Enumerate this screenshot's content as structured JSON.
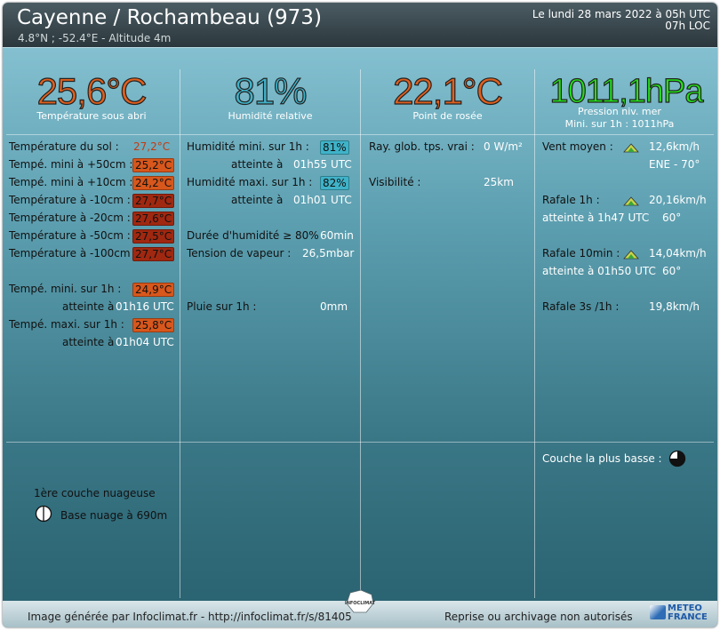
{
  "header": {
    "title": "Cayenne / Rochambeau (973)",
    "coords": "4.8°N ; -52.4°E - Altitude 4m",
    "date_line1": "Le lundi 28 mars 2022 à 05h UTC",
    "date_line2": "07h LOC"
  },
  "colors": {
    "temp": "#e0601e",
    "humidity": "#3fb2c8",
    "dew": "#e0601e",
    "pressure": "#22e01a"
  },
  "big": {
    "temperature": "25,6°C",
    "temperature_label": "Température sous abri",
    "humidity": "81%",
    "humidity_label": "Humidité relative",
    "dewpoint": "22,1°C",
    "dewpoint_label": "Point de rosée",
    "pressure": "1011,1hPa",
    "pressure_label": "Pression niv. mer",
    "pressure_min": "Mini. sur 1h :    1011hPa"
  },
  "col1": {
    "sol_label": "Température du sol :",
    "sol_value": "27,2°C",
    "p50_label": "Tempé. mini à +50cm :",
    "p50_value": "25,2°C",
    "p10_label": "Tempé. mini à +10cm :",
    "p10_value": "24,2°C",
    "m10_label": "Température à -10cm :",
    "m10_value": "27,7°C",
    "m20_label": "Température à -20cm :",
    "m20_value": "27,6°C",
    "m50_label": "Température à -50cm :",
    "m50_value": "27,5°C",
    "m100_label": "Température à -100cm :",
    "m100_value": "27,7°C",
    "min1h_label": "Tempé. mini. sur 1h :",
    "min1h_value": "24,9°C",
    "min1h_at_label": "atteinte à",
    "min1h_at": "01h16 UTC",
    "max1h_label": "Tempé. maxi. sur 1h :",
    "max1h_value": "25,8°C",
    "max1h_at_label": "atteinte à",
    "max1h_at": "01h04 UTC"
  },
  "col2": {
    "hmin_label": "Humidité mini. sur 1h :",
    "hmin_value": "81%",
    "hmin_at_label": "atteinte à",
    "hmin_at": "01h55 UTC",
    "hmax_label": "Humidité maxi. sur 1h :",
    "hmax_value": "82%",
    "hmax_at_label": "atteinte à",
    "hmax_at": "01h01 UTC",
    "dur_label": "Durée d'humidité ≥ 80% :",
    "dur_value": "60min",
    "vap_label": "Tension de vapeur :",
    "vap_value": "26,5mbar",
    "rain_label": "Pluie sur 1h :",
    "rain_value": "0mm"
  },
  "col3": {
    "ray_label": "Ray. glob. tps. vrai :",
    "ray_value": "0 W/m²",
    "vis_label": "Visibilité :",
    "vis_value": "25km"
  },
  "col4": {
    "wind_label": "Vent moyen :",
    "wind_value": "12,6km/h",
    "wind_dir": "ENE - 70°",
    "g1_label": "Rafale 1h :",
    "g1_value": "20,16km/h",
    "g1_at": "atteinte à 1h47 UTC",
    "g1_dir": "60°",
    "g10_label": "Rafale 10min :",
    "g10_value": "14,04km/h",
    "g10_at": "atteinte à 01h50 UTC",
    "g10_dir": "60°",
    "g3_label": "Rafale 3s /1h :",
    "g3_value": "19,8km/h",
    "cloud_low_label": "Couche la plus basse :"
  },
  "clouds": {
    "layer1_label": "1ère couche nuageuse",
    "layer1_base": "Base nuage à 690m"
  },
  "footer": {
    "left": "Image générée par Infoclimat.fr - http://infoclimat.fr/s/81405",
    "right": "Reprise ou archivage non autorisés",
    "logo_center": "INFOCLIMAT",
    "logo_right": "METEO FRANCE"
  }
}
